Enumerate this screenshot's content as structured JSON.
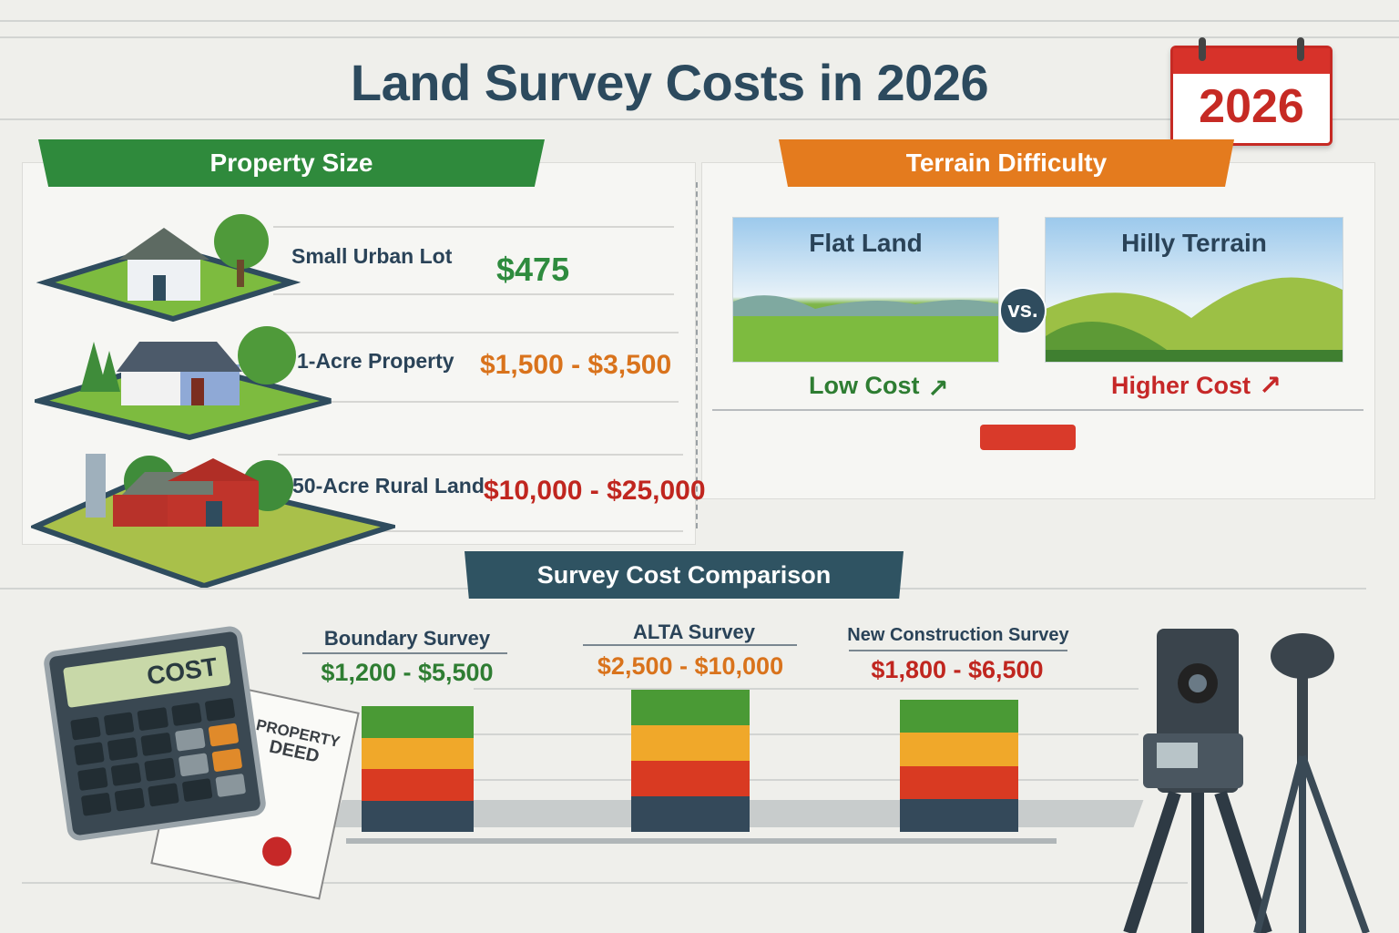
{
  "title": "Land Survey Costs in 2026",
  "calendar": {
    "year": "2026"
  },
  "property_size": {
    "heading": "Property Size",
    "rows": [
      {
        "label": "Small Urban Lot",
        "price": "$475",
        "color": "#2e8b3e"
      },
      {
        "label": "1-Acre Property",
        "price": "$1,500 - $3,500",
        "color": "#d9731c"
      },
      {
        "label": "50-Acre Rural Land",
        "price": "$10,000 - $25,000",
        "color": "#c0261f"
      }
    ]
  },
  "terrain": {
    "heading": "Terrain Difficulty",
    "vs": "vs.",
    "options": [
      {
        "label": "Flat Land",
        "cost": "Low Cost",
        "color": "#2e7d32"
      },
      {
        "label": "Hilly Terrain",
        "cost": "Higher Cost",
        "color": "#c62828"
      }
    ]
  },
  "comparison": {
    "heading": "Survey Cost Comparison",
    "columns": [
      {
        "label": "Boundary Survey",
        "price": "$1,200 - $5,500",
        "color": "#2e7d32"
      },
      {
        "label": "ALTA Survey",
        "price": "$2,500 - $10,000",
        "color": "#d9731c"
      },
      {
        "label": "New Construction Survey",
        "price": "$1,800 - $6,500",
        "color": "#c0261f"
      }
    ],
    "block_colors": [
      "#4a9a35",
      "#f0a82a",
      "#d93a22",
      "#34495a"
    ]
  },
  "calculator": {
    "screen": "COST"
  },
  "deed": {
    "title_line1": "PROPERTY",
    "title_line2": "DEED"
  }
}
